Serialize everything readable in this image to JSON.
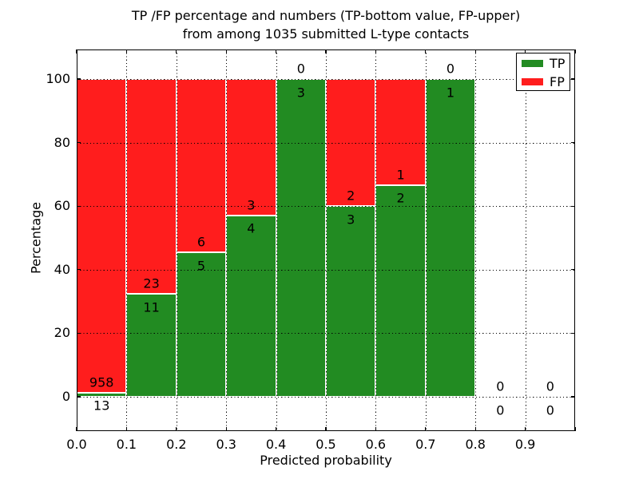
{
  "title": {
    "line1": "TP /FP percentage and numbers (TP-bottom value, FP-upper)",
    "line2": "from among 1035 submitted L-type contacts"
  },
  "axes": {
    "xlabel": "Predicted probability",
    "ylabel": "Percentage",
    "x_tick_labels": [
      "0.0",
      "0.1",
      "0.2",
      "0.3",
      "0.4",
      "0.5",
      "0.6",
      "0.7",
      "0.8",
      "0.9"
    ],
    "y_tick_labels": [
      "0",
      "20",
      "40",
      "60",
      "80",
      "100"
    ],
    "y_tick_values": [
      0,
      20,
      40,
      60,
      80,
      100
    ],
    "xlim": [
      0.0,
      1.0
    ],
    "ylim": [
      -10.9,
      109.3
    ],
    "grid_style": "dotted"
  },
  "legend": {
    "position": "upper-right",
    "items": [
      {
        "label": "TP",
        "color": "#228b22"
      },
      {
        "label": "FP",
        "color": "#ff1d1d"
      }
    ]
  },
  "chart_data": {
    "type": "bar",
    "stacked": true,
    "unit": "percent",
    "total_contacts": 1035,
    "bin_width": 0.1,
    "note": "green = TP share of bin (bottom), red = FP share of bin (top); labels are raw counts",
    "bins": [
      {
        "x0": 0.0,
        "x1": 0.1,
        "tp": 13,
        "fp": 958
      },
      {
        "x0": 0.1,
        "x1": 0.2,
        "tp": 11,
        "fp": 23
      },
      {
        "x0": 0.2,
        "x1": 0.3,
        "tp": 5,
        "fp": 6
      },
      {
        "x0": 0.3,
        "x1": 0.4,
        "tp": 4,
        "fp": 3
      },
      {
        "x0": 0.4,
        "x1": 0.5,
        "tp": 3,
        "fp": 0
      },
      {
        "x0": 0.5,
        "x1": 0.6,
        "tp": 3,
        "fp": 2
      },
      {
        "x0": 0.6,
        "x1": 0.7,
        "tp": 2,
        "fp": 1
      },
      {
        "x0": 0.7,
        "x1": 0.8,
        "tp": 1,
        "fp": 0
      },
      {
        "x0": 0.8,
        "x1": 0.9,
        "tp": 0,
        "fp": 0
      },
      {
        "x0": 0.9,
        "x1": 1.0,
        "tp": 0,
        "fp": 0
      }
    ],
    "colors": {
      "tp": "#228b22",
      "fp": "#ff1d1d",
      "edge": "#ffffff"
    }
  }
}
